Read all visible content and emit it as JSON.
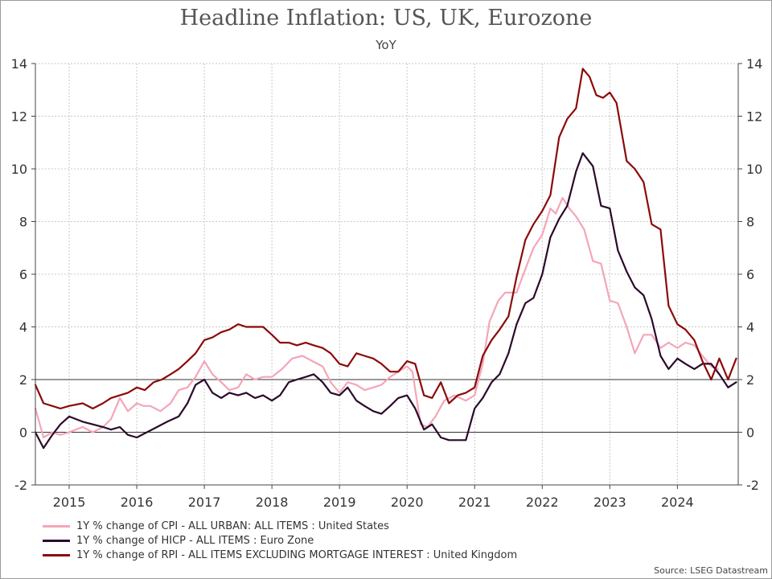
{
  "chart_data": {
    "type": "line",
    "title": "Headline Inflation: US, UK, Eurozone",
    "subtitle": "YoY",
    "source": "Source: LSEG Datastream",
    "ylim": [
      -2,
      14
    ],
    "yticks": [
      -2,
      0,
      2,
      4,
      6,
      8,
      10,
      12,
      14
    ],
    "xlim": [
      2014.5,
      2024.9
    ],
    "xtick_labels": [
      "2015",
      "2016",
      "2017",
      "2018",
      "2019",
      "2020",
      "2021",
      "2022",
      "2023",
      "2024"
    ],
    "reference_lines": [
      0,
      2
    ],
    "grid": true,
    "legend_position": "bottom-left",
    "series": [
      {
        "name": "1Y % change of CPI - ALL URBAN: ALL ITEMS : United States",
        "color": "#f4a6b8",
        "points": [
          [
            2014.5,
            0.9
          ],
          [
            2014.62,
            -0.2
          ],
          [
            2014.75,
            0
          ],
          [
            2014.87,
            -0.1
          ],
          [
            2015.0,
            0
          ],
          [
            2015.1,
            0.1
          ],
          [
            2015.2,
            0.2
          ],
          [
            2015.35,
            0
          ],
          [
            2015.5,
            0.2
          ],
          [
            2015.62,
            0.5
          ],
          [
            2015.75,
            1.3
          ],
          [
            2015.87,
            0.8
          ],
          [
            2016.0,
            1.1
          ],
          [
            2016.1,
            1.0
          ],
          [
            2016.2,
            1.0
          ],
          [
            2016.35,
            0.8
          ],
          [
            2016.5,
            1.1
          ],
          [
            2016.62,
            1.6
          ],
          [
            2016.75,
            1.7
          ],
          [
            2016.87,
            2.1
          ],
          [
            2017.0,
            2.7
          ],
          [
            2017.12,
            2.2
          ],
          [
            2017.25,
            1.9
          ],
          [
            2017.37,
            1.6
          ],
          [
            2017.5,
            1.7
          ],
          [
            2017.62,
            2.2
          ],
          [
            2017.75,
            2.0
          ],
          [
            2017.87,
            2.1
          ],
          [
            2018.0,
            2.1
          ],
          [
            2018.15,
            2.4
          ],
          [
            2018.3,
            2.8
          ],
          [
            2018.45,
            2.9
          ],
          [
            2018.6,
            2.7
          ],
          [
            2018.75,
            2.5
          ],
          [
            2018.87,
            1.9
          ],
          [
            2019.0,
            1.5
          ],
          [
            2019.12,
            1.9
          ],
          [
            2019.25,
            1.8
          ],
          [
            2019.37,
            1.6
          ],
          [
            2019.5,
            1.7
          ],
          [
            2019.62,
            1.8
          ],
          [
            2019.75,
            2.1
          ],
          [
            2019.87,
            2.3
          ],
          [
            2020.0,
            2.5
          ],
          [
            2020.08,
            2.3
          ],
          [
            2020.2,
            0.3
          ],
          [
            2020.3,
            0.2
          ],
          [
            2020.42,
            0.6
          ],
          [
            2020.55,
            1.2
          ],
          [
            2020.7,
            1.4
          ],
          [
            2020.87,
            1.2
          ],
          [
            2021.0,
            1.4
          ],
          [
            2021.12,
            2.6
          ],
          [
            2021.22,
            4.2
          ],
          [
            2021.35,
            5.0
          ],
          [
            2021.45,
            5.3
          ],
          [
            2021.62,
            5.3
          ],
          [
            2021.75,
            6.2
          ],
          [
            2021.87,
            7.0
          ],
          [
            2022.0,
            7.5
          ],
          [
            2022.12,
            8.5
          ],
          [
            2022.2,
            8.3
          ],
          [
            2022.3,
            8.9
          ],
          [
            2022.4,
            8.5
          ],
          [
            2022.5,
            8.2
          ],
          [
            2022.62,
            7.7
          ],
          [
            2022.75,
            6.5
          ],
          [
            2022.87,
            6.4
          ],
          [
            2023.0,
            5.0
          ],
          [
            2023.12,
            4.9
          ],
          [
            2023.25,
            4.0
          ],
          [
            2023.37,
            3.0
          ],
          [
            2023.5,
            3.7
          ],
          [
            2023.62,
            3.7
          ],
          [
            2023.75,
            3.2
          ],
          [
            2023.87,
            3.4
          ],
          [
            2024.0,
            3.2
          ],
          [
            2024.12,
            3.4
          ],
          [
            2024.25,
            3.3
          ],
          [
            2024.37,
            2.9
          ],
          [
            2024.5,
            2.5
          ],
          [
            2024.6,
            2.4
          ]
        ]
      },
      {
        "name": "1Y % change of HICP - ALL ITEMS : Euro Zone",
        "color": "#2a0a2a",
        "points": [
          [
            2014.5,
            0.0
          ],
          [
            2014.62,
            -0.6
          ],
          [
            2014.75,
            -0.1
          ],
          [
            2014.87,
            0.3
          ],
          [
            2015.0,
            0.6
          ],
          [
            2015.1,
            0.5
          ],
          [
            2015.2,
            0.4
          ],
          [
            2015.35,
            0.3
          ],
          [
            2015.5,
            0.2
          ],
          [
            2015.62,
            0.1
          ],
          [
            2015.75,
            0.2
          ],
          [
            2015.87,
            -0.1
          ],
          [
            2016.0,
            -0.2
          ],
          [
            2016.15,
            0.0
          ],
          [
            2016.3,
            0.2
          ],
          [
            2016.45,
            0.4
          ],
          [
            2016.62,
            0.6
          ],
          [
            2016.75,
            1.1
          ],
          [
            2016.87,
            1.8
          ],
          [
            2017.0,
            2.0
          ],
          [
            2017.12,
            1.5
          ],
          [
            2017.25,
            1.3
          ],
          [
            2017.37,
            1.5
          ],
          [
            2017.5,
            1.4
          ],
          [
            2017.62,
            1.5
          ],
          [
            2017.75,
            1.3
          ],
          [
            2017.87,
            1.4
          ],
          [
            2018.0,
            1.2
          ],
          [
            2018.12,
            1.4
          ],
          [
            2018.25,
            1.9
          ],
          [
            2018.37,
            2.0
          ],
          [
            2018.5,
            2.1
          ],
          [
            2018.62,
            2.2
          ],
          [
            2018.75,
            1.9
          ],
          [
            2018.87,
            1.5
          ],
          [
            2019.0,
            1.4
          ],
          [
            2019.12,
            1.7
          ],
          [
            2019.25,
            1.2
          ],
          [
            2019.37,
            1.0
          ],
          [
            2019.5,
            0.8
          ],
          [
            2019.62,
            0.7
          ],
          [
            2019.75,
            1.0
          ],
          [
            2019.87,
            1.3
          ],
          [
            2020.0,
            1.4
          ],
          [
            2020.12,
            0.9
          ],
          [
            2020.25,
            0.1
          ],
          [
            2020.37,
            0.3
          ],
          [
            2020.5,
            -0.2
          ],
          [
            2020.62,
            -0.3
          ],
          [
            2020.75,
            -0.3
          ],
          [
            2020.87,
            -0.3
          ],
          [
            2021.0,
            0.9
          ],
          [
            2021.12,
            1.3
          ],
          [
            2021.25,
            1.9
          ],
          [
            2021.37,
            2.2
          ],
          [
            2021.5,
            3.0
          ],
          [
            2021.62,
            4.1
          ],
          [
            2021.75,
            4.9
          ],
          [
            2021.87,
            5.1
          ],
          [
            2022.0,
            6.0
          ],
          [
            2022.12,
            7.4
          ],
          [
            2022.25,
            8.1
          ],
          [
            2022.37,
            8.6
          ],
          [
            2022.5,
            9.9
          ],
          [
            2022.6,
            10.6
          ],
          [
            2022.75,
            10.1
          ],
          [
            2022.87,
            8.6
          ],
          [
            2023.0,
            8.5
          ],
          [
            2023.12,
            6.9
          ],
          [
            2023.25,
            6.1
          ],
          [
            2023.37,
            5.5
          ],
          [
            2023.5,
            5.2
          ],
          [
            2023.62,
            4.3
          ],
          [
            2023.75,
            2.9
          ],
          [
            2023.87,
            2.4
          ],
          [
            2024.0,
            2.8
          ],
          [
            2024.12,
            2.6
          ],
          [
            2024.25,
            2.4
          ],
          [
            2024.37,
            2.6
          ],
          [
            2024.5,
            2.6
          ],
          [
            2024.62,
            2.2
          ],
          [
            2024.75,
            1.7
          ],
          [
            2024.87,
            1.9
          ]
        ]
      },
      {
        "name": "1Y % change of RPI - ALL ITEMS EXCLUDING MORTGAGE INTEREST : United Kingdom",
        "color": "#8b0a0a",
        "points": [
          [
            2014.5,
            1.8
          ],
          [
            2014.62,
            1.1
          ],
          [
            2014.75,
            1.0
          ],
          [
            2014.87,
            0.9
          ],
          [
            2015.0,
            1.0
          ],
          [
            2015.2,
            1.1
          ],
          [
            2015.35,
            0.9
          ],
          [
            2015.5,
            1.1
          ],
          [
            2015.62,
            1.3
          ],
          [
            2015.75,
            1.4
          ],
          [
            2015.87,
            1.5
          ],
          [
            2016.0,
            1.7
          ],
          [
            2016.12,
            1.6
          ],
          [
            2016.25,
            1.9
          ],
          [
            2016.37,
            2.0
          ],
          [
            2016.5,
            2.2
          ],
          [
            2016.62,
            2.4
          ],
          [
            2016.75,
            2.7
          ],
          [
            2016.87,
            3.0
          ],
          [
            2017.0,
            3.5
          ],
          [
            2017.12,
            3.6
          ],
          [
            2017.25,
            3.8
          ],
          [
            2017.37,
            3.9
          ],
          [
            2017.5,
            4.1
          ],
          [
            2017.62,
            4.0
          ],
          [
            2017.75,
            4.0
          ],
          [
            2017.87,
            4.0
          ],
          [
            2018.0,
            3.7
          ],
          [
            2018.12,
            3.4
          ],
          [
            2018.25,
            3.4
          ],
          [
            2018.37,
            3.3
          ],
          [
            2018.5,
            3.4
          ],
          [
            2018.62,
            3.3
          ],
          [
            2018.75,
            3.2
          ],
          [
            2018.87,
            3.0
          ],
          [
            2019.0,
            2.6
          ],
          [
            2019.12,
            2.5
          ],
          [
            2019.25,
            3.0
          ],
          [
            2019.37,
            2.9
          ],
          [
            2019.5,
            2.8
          ],
          [
            2019.62,
            2.6
          ],
          [
            2019.75,
            2.3
          ],
          [
            2019.87,
            2.3
          ],
          [
            2020.0,
            2.7
          ],
          [
            2020.12,
            2.6
          ],
          [
            2020.25,
            1.4
          ],
          [
            2020.37,
            1.3
          ],
          [
            2020.5,
            1.9
          ],
          [
            2020.62,
            1.1
          ],
          [
            2020.75,
            1.4
          ],
          [
            2020.87,
            1.5
          ],
          [
            2021.0,
            1.7
          ],
          [
            2021.12,
            2.9
          ],
          [
            2021.25,
            3.5
          ],
          [
            2021.37,
            3.9
          ],
          [
            2021.5,
            4.4
          ],
          [
            2021.62,
            5.9
          ],
          [
            2021.75,
            7.3
          ],
          [
            2021.87,
            7.9
          ],
          [
            2022.0,
            8.4
          ],
          [
            2022.12,
            9.0
          ],
          [
            2022.25,
            11.2
          ],
          [
            2022.37,
            11.9
          ],
          [
            2022.5,
            12.3
          ],
          [
            2022.6,
            13.8
          ],
          [
            2022.7,
            13.5
          ],
          [
            2022.8,
            12.8
          ],
          [
            2022.9,
            12.7
          ],
          [
            2023.0,
            12.9
          ],
          [
            2023.1,
            12.5
          ],
          [
            2023.25,
            10.3
          ],
          [
            2023.37,
            10.0
          ],
          [
            2023.5,
            9.5
          ],
          [
            2023.62,
            7.9
          ],
          [
            2023.75,
            7.7
          ],
          [
            2023.87,
            4.8
          ],
          [
            2024.0,
            4.1
          ],
          [
            2024.12,
            3.9
          ],
          [
            2024.25,
            3.5
          ],
          [
            2024.37,
            2.7
          ],
          [
            2024.5,
            2.0
          ],
          [
            2024.62,
            2.8
          ],
          [
            2024.75,
            2.0
          ],
          [
            2024.87,
            2.8
          ]
        ]
      }
    ]
  }
}
